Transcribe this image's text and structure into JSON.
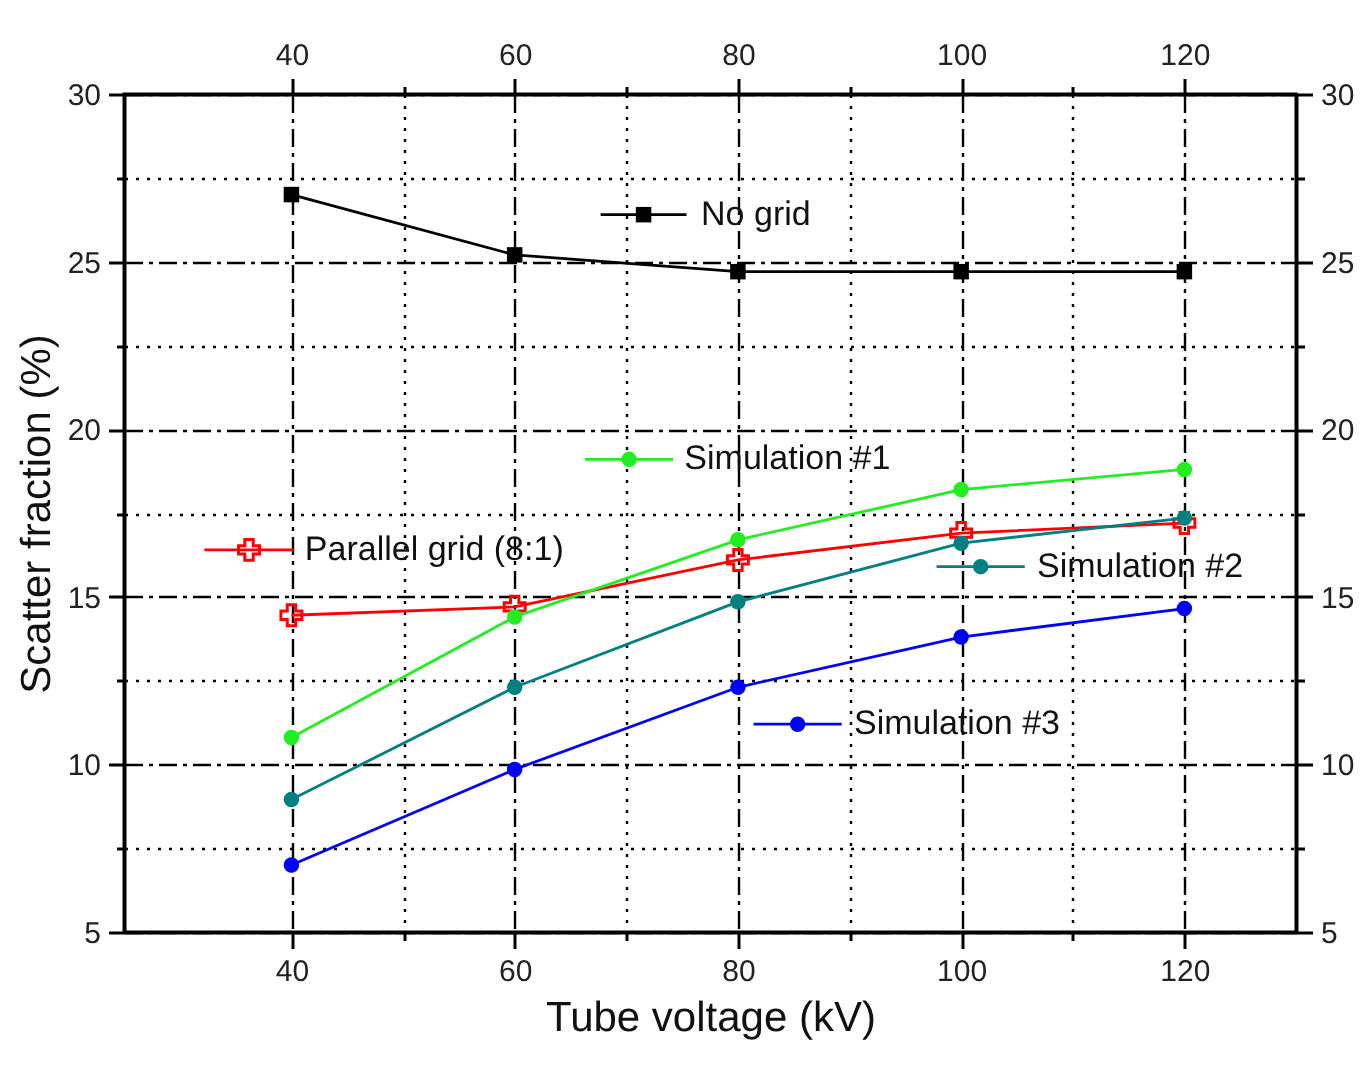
{
  "chart_data": {
    "type": "line",
    "xlabel": "Tube voltage (kV)",
    "ylabel": "Scatter fraction (%)",
    "x": [
      40,
      60,
      80,
      100,
      120
    ],
    "series": [
      {
        "name": "No grid",
        "color": "#000000",
        "marker": "square",
        "values": [
          27.0,
          25.2,
          24.7,
          24.7,
          24.7
        ]
      },
      {
        "name": "Parallel grid (8:1)",
        "color": "#ff0000",
        "marker": "cross",
        "values": [
          14.45,
          14.7,
          16.1,
          16.9,
          17.2
        ]
      },
      {
        "name": "Simulation #1",
        "color": "#22ee22",
        "marker": "circle",
        "values": [
          10.8,
          14.4,
          16.7,
          18.2,
          18.8
        ]
      },
      {
        "name": "Simulation #2",
        "color": "#008080",
        "marker": "circle",
        "values": [
          8.95,
          12.3,
          14.85,
          16.6,
          17.35
        ]
      },
      {
        "name": "Simulation #3",
        "color": "#0000ff",
        "marker": "circle",
        "values": [
          7.0,
          9.85,
          12.3,
          13.8,
          14.65
        ]
      }
    ],
    "xlim": [
      25,
      130
    ],
    "xticks": [
      40,
      {
        "value": 50,
        "label": null
      },
      60,
      {
        "value": 70,
        "label": null
      },
      80,
      {
        "value": 90,
        "label": null
      },
      100,
      {
        "value": 110,
        "label": null
      },
      120
    ],
    "x2lim": [
      25,
      130
    ],
    "x2ticks": [
      40,
      {
        "value": 50,
        "label": null
      },
      60,
      {
        "value": 70,
        "label": null
      },
      80,
      {
        "value": 90,
        "label": null
      },
      100,
      {
        "value": 110,
        "label": null
      },
      120
    ],
    "ylim": [
      5,
      30
    ],
    "yticks": [
      5,
      {
        "value": 7.5,
        "label": null
      },
      10,
      {
        "value": 12.5,
        "label": null
      },
      15,
      {
        "value": 17.5,
        "label": null
      },
      20,
      {
        "value": 22.5,
        "label": null
      },
      25,
      {
        "value": 27.5,
        "label": null
      },
      30
    ],
    "y2lim": [
      5,
      30
    ],
    "y2ticks": [
      5,
      {
        "value": 7.5,
        "label": null
      },
      10,
      {
        "value": 12.5,
        "label": null
      },
      15,
      {
        "value": 17.5,
        "label": null
      },
      20,
      {
        "value": 22.5,
        "label": null
      },
      25,
      {
        "value": 27.5,
        "label": null
      },
      30
    ],
    "grid": true,
    "legend": "top"
  }
}
